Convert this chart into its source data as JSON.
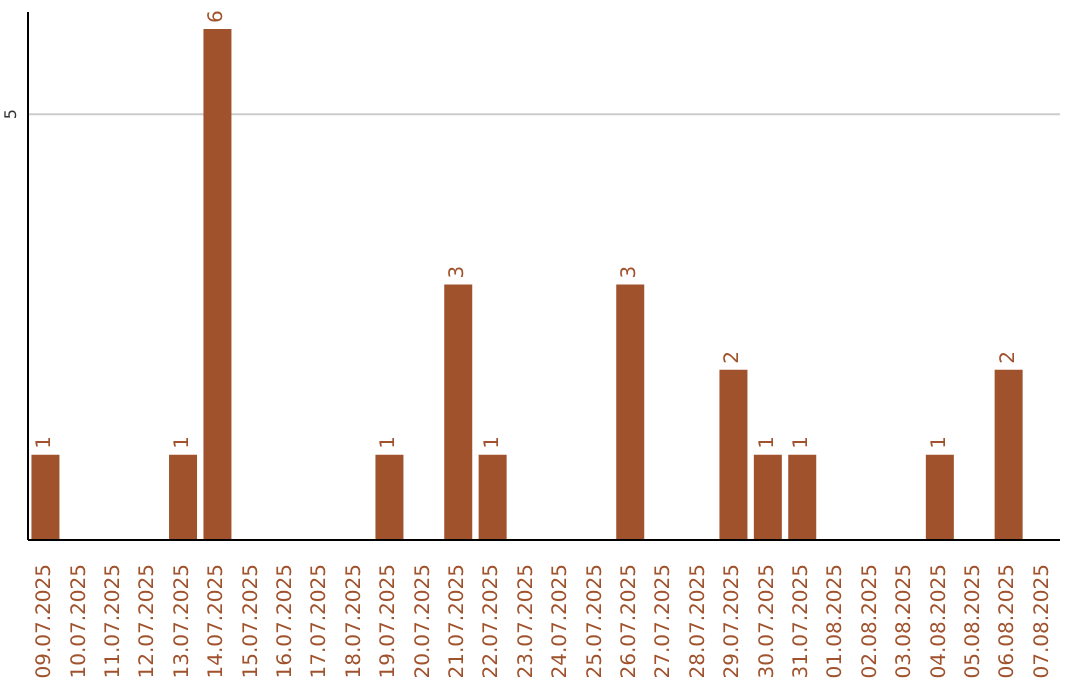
{
  "chart_data": {
    "type": "bar",
    "categories": [
      "09.07.2025",
      "10.07.2025",
      "11.07.2025",
      "12.07.2025",
      "13.07.2025",
      "14.07.2025",
      "15.07.2025",
      "16.07.2025",
      "17.07.2025",
      "18.07.2025",
      "19.07.2025",
      "20.07.2025",
      "21.07.2025",
      "22.07.2025",
      "23.07.2025",
      "24.07.2025",
      "25.07.2025",
      "26.07.2025",
      "27.07.2025",
      "28.07.2025",
      "29.07.2025",
      "30.07.2025",
      "31.07.2025",
      "01.08.2025",
      "02.08.2025",
      "03.08.2025",
      "04.08.2025",
      "05.08.2025",
      "06.08.2025",
      "07.08.2025"
    ],
    "values": [
      1,
      0,
      0,
      0,
      1,
      6,
      0,
      0,
      0,
      0,
      1,
      0,
      3,
      1,
      0,
      0,
      0,
      3,
      0,
      0,
      2,
      1,
      1,
      0,
      0,
      0,
      1,
      0,
      2,
      0
    ],
    "value_labels": [
      "1",
      null,
      null,
      null,
      "1",
      "6",
      null,
      null,
      null,
      null,
      "1",
      null,
      "3",
      "1",
      null,
      null,
      null,
      "3",
      null,
      null,
      "2",
      "1",
      "1",
      null,
      null,
      null,
      "1",
      null,
      "2",
      null
    ],
    "color": "#a0522d",
    "ylim": [
      0,
      6.2
    ],
    "yticks": [
      5
    ],
    "grid": "y"
  }
}
